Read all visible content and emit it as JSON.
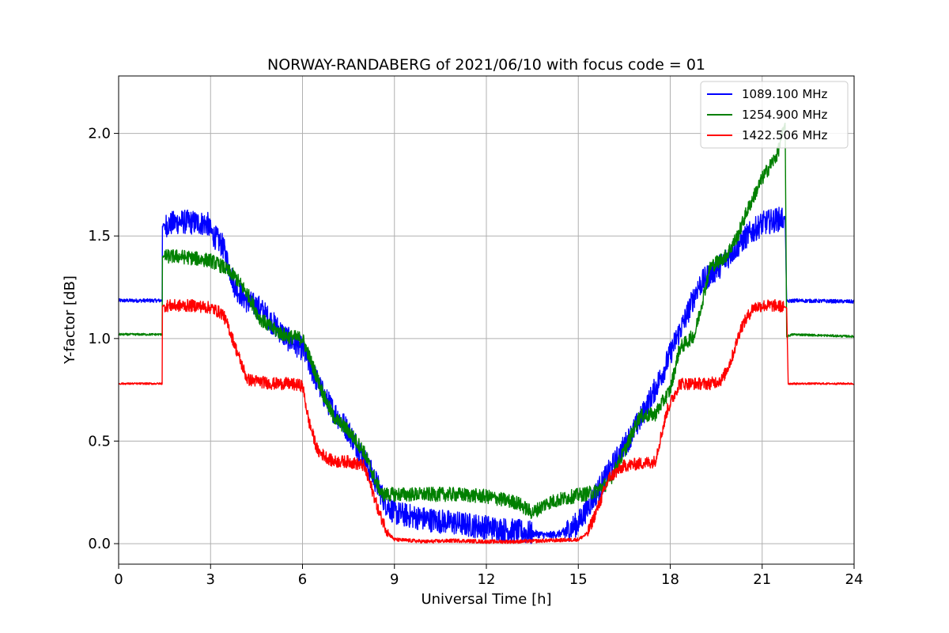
{
  "chart_data": {
    "type": "line",
    "title": "NORWAY-RANDABERG of 2021/06/10 with focus code = 01",
    "xlabel": "Universal Time [h]",
    "ylabel": "Y-factor [dB]",
    "xlim": [
      0,
      24
    ],
    "ylim": [
      -0.1,
      2.28
    ],
    "xticks": [
      "0",
      "3",
      "6",
      "9",
      "12",
      "15",
      "18",
      "21",
      "24"
    ],
    "yticks": [
      "0.0",
      "0.5",
      "1.0",
      "1.5",
      "2.0"
    ],
    "grid": true,
    "legend_position": "top-right",
    "series": [
      {
        "name": "1089.100 MHz",
        "color": "#0000ff",
        "x": [
          0,
          1.42,
          1.43,
          2.0,
          2.9,
          3.0,
          3.4,
          3.6,
          3.8,
          4.2,
          4.6,
          5.0,
          5.5,
          6.0,
          6.3,
          6.7,
          7.0,
          7.5,
          8.0,
          8.4,
          8.7,
          9.0,
          10.0,
          11.0,
          12.0,
          13.0,
          14.0,
          14.5,
          15.0,
          15.4,
          15.8,
          16.2,
          16.6,
          17.0,
          17.4,
          17.8,
          18.2,
          18.5,
          18.9,
          19.2,
          19.6,
          20.0,
          20.5,
          21.0,
          21.5,
          21.75,
          21.8,
          22.0,
          24
        ],
        "y": [
          1.185,
          1.185,
          1.55,
          1.57,
          1.56,
          1.52,
          1.45,
          1.35,
          1.25,
          1.18,
          1.15,
          1.08,
          1.0,
          0.95,
          0.85,
          0.72,
          0.65,
          0.55,
          0.42,
          0.3,
          0.2,
          0.15,
          0.12,
          0.1,
          0.08,
          0.06,
          0.04,
          0.05,
          0.1,
          0.2,
          0.3,
          0.4,
          0.5,
          0.6,
          0.72,
          0.85,
          1.0,
          1.1,
          1.25,
          1.3,
          1.35,
          1.42,
          1.5,
          1.56,
          1.58,
          1.59,
          1.18,
          1.185,
          1.18
        ]
      },
      {
        "name": "1254.900 MHz",
        "color": "#008000",
        "x": [
          0,
          1.42,
          1.43,
          2.0,
          2.5,
          3.0,
          3.4,
          3.8,
          4.2,
          4.6,
          5.0,
          5.5,
          6.0,
          6.3,
          6.7,
          7.0,
          7.5,
          8.0,
          8.4,
          8.6,
          9.0,
          10.0,
          11.0,
          12.0,
          13.0,
          13.5,
          14.0,
          14.8,
          15.5,
          16.0,
          16.5,
          17.0,
          17.5,
          18.0,
          18.3,
          18.8,
          19.3,
          19.8,
          20.2,
          20.5,
          21.0,
          21.5,
          21.75,
          21.8,
          22.0,
          24
        ],
        "y": [
          1.02,
          1.02,
          1.4,
          1.4,
          1.39,
          1.38,
          1.35,
          1.3,
          1.22,
          1.1,
          1.05,
          1.01,
          1.0,
          0.88,
          0.72,
          0.62,
          0.55,
          0.45,
          0.3,
          0.24,
          0.24,
          0.24,
          0.24,
          0.23,
          0.2,
          0.15,
          0.2,
          0.23,
          0.25,
          0.3,
          0.45,
          0.62,
          0.63,
          0.75,
          0.95,
          1.02,
          1.35,
          1.4,
          1.5,
          1.62,
          1.78,
          1.9,
          2.05,
          1.01,
          1.02,
          1.01
        ]
      },
      {
        "name": "1422.506 MHz",
        "color": "#ff0000",
        "x": [
          0,
          1.42,
          1.43,
          2.0,
          2.5,
          3.0,
          3.4,
          3.6,
          3.9,
          4.2,
          4.6,
          5.0,
          5.5,
          6.0,
          6.2,
          6.5,
          7.0,
          7.5,
          8.0,
          8.3,
          8.5,
          8.8,
          9.0,
          10.0,
          11.0,
          12.0,
          13.0,
          14.0,
          15.0,
          15.3,
          15.7,
          16.0,
          16.5,
          17.0,
          17.5,
          17.9,
          18.3,
          18.8,
          19.3,
          19.7,
          20.0,
          20.3,
          20.7,
          21.0,
          21.5,
          21.8,
          21.85,
          22.0,
          24
        ],
        "y": [
          0.78,
          0.78,
          1.16,
          1.16,
          1.16,
          1.15,
          1.12,
          1.05,
          0.92,
          0.8,
          0.79,
          0.78,
          0.78,
          0.77,
          0.6,
          0.45,
          0.4,
          0.4,
          0.38,
          0.25,
          0.15,
          0.05,
          0.02,
          0.01,
          0.015,
          0.01,
          0.01,
          0.015,
          0.02,
          0.05,
          0.2,
          0.32,
          0.38,
          0.39,
          0.4,
          0.65,
          0.78,
          0.78,
          0.78,
          0.8,
          0.9,
          1.05,
          1.15,
          1.16,
          1.16,
          1.15,
          0.78,
          0.78,
          0.78
        ]
      }
    ]
  }
}
